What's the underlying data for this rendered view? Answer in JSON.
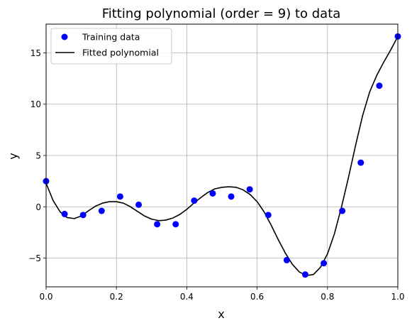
{
  "chart_data": {
    "type": "scatter",
    "title": "Fitting polynomial (order = 9) to data",
    "xlabel": "x",
    "ylabel": "y",
    "xlim": [
      0,
      1
    ],
    "ylim": [
      -7.8,
      17.8
    ],
    "grid": true,
    "legend_position": "top-left",
    "x_ticks": [
      {
        "value": 0.0,
        "label": "0.0"
      },
      {
        "value": 0.2,
        "label": "0.2"
      },
      {
        "value": 0.4,
        "label": "0.4"
      },
      {
        "value": 0.6,
        "label": "0.6"
      },
      {
        "value": 0.8,
        "label": "0.8"
      },
      {
        "value": 1.0,
        "label": "1.0"
      }
    ],
    "y_ticks": [
      {
        "value": -5,
        "label": "−5"
      },
      {
        "value": 0,
        "label": "0"
      },
      {
        "value": 5,
        "label": "5"
      },
      {
        "value": 10,
        "label": "10"
      },
      {
        "value": 15,
        "label": "15"
      }
    ],
    "series": [
      {
        "name": "Training data",
        "kind": "scatter",
        "color": "#0000ff",
        "x": [
          0.0,
          0.0526,
          0.1053,
          0.1579,
          0.2105,
          0.2632,
          0.3158,
          0.3684,
          0.4211,
          0.4737,
          0.5263,
          0.5789,
          0.6316,
          0.6842,
          0.7368,
          0.7895,
          0.8421,
          0.8947,
          0.9474,
          1.0
        ],
        "y": [
          2.5,
          -0.7,
          -0.8,
          -0.4,
          1.0,
          0.2,
          -1.7,
          -1.7,
          0.6,
          1.3,
          1.0,
          1.7,
          -0.8,
          -5.2,
          -6.6,
          -5.5,
          -0.4,
          4.3,
          11.8,
          16.6
        ]
      },
      {
        "name": "Fitted polynomial",
        "kind": "line",
        "color": "#000000",
        "x": [
          0.0,
          0.02,
          0.04,
          0.06,
          0.08,
          0.1,
          0.12,
          0.14,
          0.16,
          0.18,
          0.2,
          0.22,
          0.24,
          0.26,
          0.28,
          0.3,
          0.32,
          0.34,
          0.36,
          0.38,
          0.4,
          0.42,
          0.44,
          0.46,
          0.48,
          0.5,
          0.52,
          0.54,
          0.56,
          0.58,
          0.6,
          0.62,
          0.64,
          0.66,
          0.68,
          0.7,
          0.72,
          0.74,
          0.76,
          0.78,
          0.8,
          0.82,
          0.84,
          0.86,
          0.88,
          0.9,
          0.92,
          0.94,
          0.96,
          0.98,
          1.0
        ],
        "y": [
          2.3,
          0.6,
          -0.5,
          -1.05,
          -1.15,
          -0.9,
          -0.4,
          0.05,
          0.35,
          0.5,
          0.5,
          0.35,
          0.0,
          -0.45,
          -0.9,
          -1.2,
          -1.35,
          -1.3,
          -1.1,
          -0.75,
          -0.25,
          0.35,
          0.9,
          1.4,
          1.75,
          1.9,
          1.95,
          1.9,
          1.65,
          1.2,
          0.5,
          -0.5,
          -1.8,
          -3.2,
          -4.5,
          -5.6,
          -6.35,
          -6.7,
          -6.6,
          -5.9,
          -4.6,
          -2.6,
          0.0,
          2.9,
          6.0,
          8.9,
          11.2,
          12.8,
          14.1,
          15.3,
          16.6
        ]
      }
    ]
  }
}
